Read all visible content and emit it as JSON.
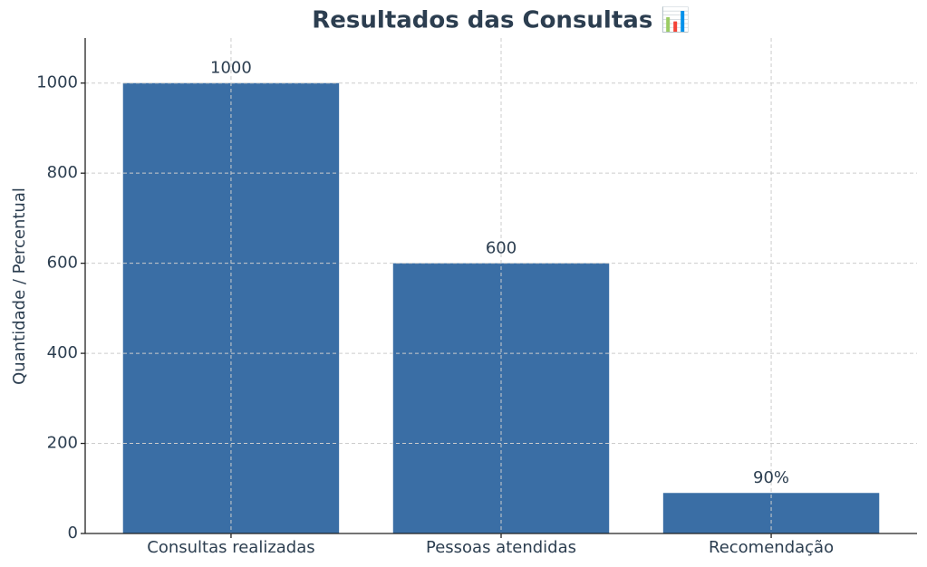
{
  "chart_data": {
    "type": "bar",
    "title": "Resultados das Consultas 📊",
    "ylabel": "Quantidade / Percentual",
    "categories": [
      "Consultas realizadas",
      "Pessoas atendidas",
      "Recomendação"
    ],
    "values": [
      1000,
      600,
      90
    ],
    "value_labels": [
      "1000",
      "600",
      "90%"
    ],
    "color": "#3a6ea5",
    "ylim": [
      0,
      1100
    ],
    "yticks": [
      0,
      200,
      400,
      600,
      800,
      1000
    ],
    "grid": true
  }
}
